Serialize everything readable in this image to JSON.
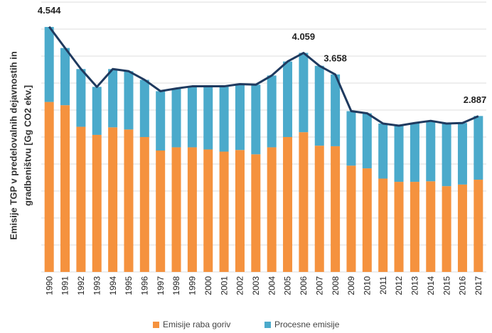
{
  "chart_data": {
    "type": "stacked_bar_line",
    "y_label": [
      "Emisije TGP v predelovalnih dejavnostih in",
      "gradbeništvu [Gg CO2 ekv.]"
    ],
    "categories": [
      "1990",
      "1991",
      "1992",
      "1993",
      "1994",
      "1995",
      "1996",
      "1997",
      "1998",
      "1999",
      "2000",
      "2001",
      "2002",
      "2003",
      "2004",
      "2005",
      "2006",
      "2007",
      "2008",
      "2009",
      "2010",
      "2011",
      "2012",
      "2013",
      "2014",
      "2015",
      "2016",
      "2017"
    ],
    "series": [
      {
        "name": "Emisije raba goriv",
        "color": "#f5923e",
        "values": [
          3.15,
          3.09,
          2.69,
          2.54,
          2.68,
          2.64,
          2.5,
          2.25,
          2.31,
          2.31,
          2.27,
          2.23,
          2.26,
          2.18,
          2.31,
          2.5,
          2.59,
          2.34,
          2.33,
          1.97,
          1.92,
          1.73,
          1.67,
          1.67,
          1.68,
          1.59,
          1.62,
          1.71
        ]
      },
      {
        "name": "Procesne emisije",
        "color": "#4baacb",
        "values": [
          1.39,
          1.06,
          1.07,
          0.89,
          1.08,
          1.08,
          1.06,
          1.1,
          1.09,
          1.13,
          1.17,
          1.21,
          1.22,
          1.29,
          1.33,
          1.4,
          1.47,
          1.48,
          1.33,
          1.01,
          1.02,
          1.02,
          1.04,
          1.09,
          1.12,
          1.16,
          1.14,
          1.18
        ]
      }
    ],
    "line": {
      "color": "#1f3a5f",
      "values": [
        4.544,
        4.15,
        3.76,
        3.43,
        3.76,
        3.72,
        3.56,
        3.35,
        3.4,
        3.44,
        3.44,
        3.44,
        3.48,
        3.47,
        3.64,
        3.9,
        4.059,
        3.82,
        3.658,
        2.98,
        2.94,
        2.75,
        2.71,
        2.76,
        2.8,
        2.75,
        2.76,
        2.887
      ],
      "value_labels": [
        "4.544",
        null,
        null,
        null,
        null,
        null,
        null,
        null,
        null,
        null,
        null,
        null,
        null,
        null,
        null,
        null,
        "4.059",
        null,
        "3.658",
        null,
        null,
        null,
        null,
        null,
        null,
        null,
        null,
        "2.887"
      ]
    },
    "ylim": [
      0,
      5
    ],
    "yticks": [
      0,
      0.5,
      1,
      1.5,
      2,
      2.5,
      3,
      3.5,
      4,
      4.5,
      5
    ],
    "grid": true
  }
}
